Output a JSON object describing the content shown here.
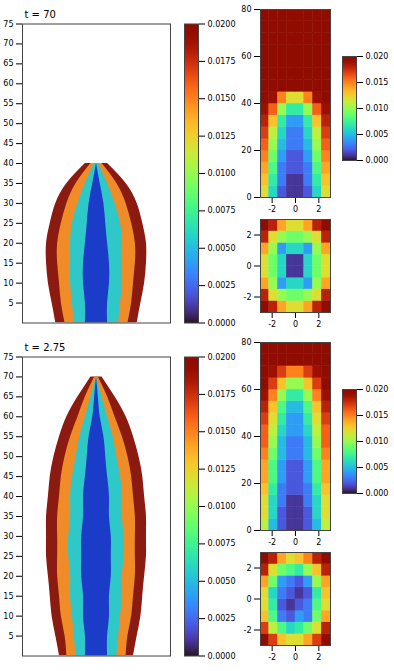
{
  "chart_data": [
    {
      "type": "area",
      "title": "t = 70",
      "xlim": [
        -4,
        4
      ],
      "ylim": [
        0,
        75
      ],
      "yticks": [
        5,
        10,
        15,
        20,
        25,
        30,
        35,
        40,
        45,
        50,
        55,
        60,
        65,
        70,
        75
      ],
      "tick_labels": "y",
      "z": [
        0,
        5,
        10,
        15,
        20,
        25,
        30,
        35,
        40
      ],
      "layers": [
        {
          "color": "#8b1a10",
          "halfwidth": [
            2.2,
            2.4,
            2.6,
            2.7,
            2.7,
            2.5,
            2.2,
            1.6,
            0.6
          ]
        },
        {
          "color": "#f08c28",
          "halfwidth": [
            1.7,
            1.9,
            2.0,
            2.1,
            2.1,
            1.9,
            1.6,
            1.1,
            0.3
          ]
        },
        {
          "color": "#2fc8c8",
          "halfwidth": [
            1.2,
            1.3,
            1.4,
            1.4,
            1.4,
            1.3,
            1.0,
            0.6,
            0.1
          ]
        },
        {
          "color": "#1a3cc8",
          "halfwidth": [
            0.6,
            0.6,
            0.7,
            0.7,
            0.6,
            0.5,
            0.4,
            0.2,
            0.0
          ]
        }
      ],
      "colorbar": {
        "range": [
          0,
          0.02
        ],
        "ticks": [
          {
            "value": 0,
            "label": "0.0000"
          },
          {
            "value": 0.0025,
            "label": "0.0025"
          },
          {
            "value": 0.005,
            "label": "0.0050"
          },
          {
            "value": 0.0075,
            "label": "0.0075"
          },
          {
            "value": 0.01,
            "label": "0.0100"
          },
          {
            "value": 0.0125,
            "label": "0.0125"
          },
          {
            "value": 0.015,
            "label": "0.0150"
          },
          {
            "value": 0.0175,
            "label": "0.0175"
          },
          {
            "value": 0.02,
            "label": "0.0200"
          }
        ]
      }
    },
    {
      "type": "heatmap",
      "xlim": [
        -3,
        3
      ],
      "xticks": [
        -2,
        0,
        2
      ],
      "ylim": [
        0,
        80
      ],
      "yticks": [
        0,
        20,
        40,
        60,
        80
      ],
      "cells": [
        [
          0.012,
          0.006,
          0.002,
          0.001,
          0.001,
          0.002,
          0.006,
          0.012
        ],
        [
          0.013,
          0.007,
          0.003,
          0.001,
          0.001,
          0.003,
          0.007,
          0.013
        ],
        [
          0.014,
          0.008,
          0.003,
          0.002,
          0.002,
          0.003,
          0.008,
          0.014
        ],
        [
          0.015,
          0.009,
          0.004,
          0.002,
          0.002,
          0.004,
          0.009,
          0.015
        ],
        [
          0.016,
          0.01,
          0.005,
          0.003,
          0.003,
          0.005,
          0.01,
          0.016
        ],
        [
          0.017,
          0.011,
          0.006,
          0.003,
          0.003,
          0.006,
          0.011,
          0.017
        ],
        [
          0.018,
          0.013,
          0.007,
          0.004,
          0.004,
          0.007,
          0.013,
          0.018
        ],
        [
          0.019,
          0.016,
          0.01,
          0.007,
          0.007,
          0.01,
          0.016,
          0.019
        ],
        [
          0.02,
          0.019,
          0.015,
          0.012,
          0.012,
          0.015,
          0.019,
          0.02
        ],
        [
          0.02,
          0.02,
          0.02,
          0.02,
          0.02,
          0.02,
          0.02,
          0.02
        ],
        [
          0.02,
          0.02,
          0.02,
          0.02,
          0.02,
          0.02,
          0.02,
          0.02
        ],
        [
          0.02,
          0.02,
          0.02,
          0.02,
          0.02,
          0.02,
          0.02,
          0.02
        ],
        [
          0.02,
          0.02,
          0.02,
          0.02,
          0.02,
          0.02,
          0.02,
          0.02
        ],
        [
          0.02,
          0.02,
          0.02,
          0.02,
          0.02,
          0.02,
          0.02,
          0.02
        ],
        [
          0.02,
          0.02,
          0.02,
          0.02,
          0.02,
          0.02,
          0.02,
          0.02
        ],
        [
          0.02,
          0.02,
          0.02,
          0.02,
          0.02,
          0.02,
          0.02,
          0.02
        ]
      ],
      "colorbar": {
        "range": [
          0,
          0.02
        ],
        "ticks": [
          {
            "value": 0,
            "label": "0.000"
          },
          {
            "value": 0.005,
            "label": "0.005"
          },
          {
            "value": 0.01,
            "label": "0.010"
          },
          {
            "value": 0.015,
            "label": "0.015"
          },
          {
            "value": 0.02,
            "label": "0.020"
          }
        ]
      }
    },
    {
      "type": "heatmap",
      "xlim": [
        -3,
        3
      ],
      "xticks": [
        -2,
        0,
        2
      ],
      "ylim": [
        -3,
        3
      ],
      "yticks": [
        -2,
        0,
        2
      ],
      "cells": [
        [
          0.02,
          0.018,
          0.014,
          0.012,
          0.012,
          0.014,
          0.018,
          0.02
        ],
        [
          0.018,
          0.012,
          0.01,
          0.009,
          0.009,
          0.01,
          0.012,
          0.018
        ],
        [
          0.014,
          0.01,
          0.004,
          0.006,
          0.006,
          0.004,
          0.01,
          0.014
        ],
        [
          0.012,
          0.009,
          0.006,
          0.001,
          0.001,
          0.006,
          0.009,
          0.012
        ],
        [
          0.012,
          0.009,
          0.006,
          0.001,
          0.001,
          0.006,
          0.009,
          0.012
        ],
        [
          0.014,
          0.01,
          0.004,
          0.006,
          0.006,
          0.004,
          0.01,
          0.014
        ],
        [
          0.018,
          0.012,
          0.01,
          0.009,
          0.009,
          0.01,
          0.012,
          0.018
        ],
        [
          0.02,
          0.018,
          0.014,
          0.012,
          0.012,
          0.014,
          0.018,
          0.02
        ]
      ]
    },
    {
      "type": "area",
      "title": "t = 2.75",
      "xlim": [
        -4,
        4
      ],
      "ylim": [
        0,
        75
      ],
      "yticks": [
        5,
        10,
        15,
        20,
        25,
        30,
        35,
        40,
        45,
        50,
        55,
        60,
        65,
        70,
        75
      ],
      "tick_labels": "y",
      "z": [
        0,
        5,
        10,
        15,
        20,
        25,
        30,
        35,
        40,
        45,
        50,
        55,
        60,
        65,
        70
      ],
      "layers": [
        {
          "color": "#8b1a10",
          "halfwidth": [
            2.0,
            2.2,
            2.4,
            2.5,
            2.6,
            2.7,
            2.7,
            2.7,
            2.6,
            2.5,
            2.3,
            2.0,
            1.6,
            1.0,
            0.3
          ]
        },
        {
          "color": "#f08c28",
          "halfwidth": [
            1.6,
            1.7,
            1.9,
            2.0,
            2.1,
            2.1,
            2.1,
            2.1,
            2.0,
            1.9,
            1.7,
            1.4,
            1.0,
            0.6,
            0.1
          ]
        },
        {
          "color": "#2fc8c8",
          "halfwidth": [
            1.1,
            1.2,
            1.3,
            1.4,
            1.4,
            1.5,
            1.5,
            1.4,
            1.4,
            1.3,
            1.1,
            0.9,
            0.6,
            0.3,
            0.0
          ]
        },
        {
          "color": "#1a3cc8",
          "halfwidth": [
            0.6,
            0.6,
            0.7,
            0.7,
            0.8,
            0.8,
            0.8,
            0.7,
            0.7,
            0.6,
            0.5,
            0.4,
            0.2,
            0.1,
            0.0
          ]
        }
      ],
      "colorbar": {
        "range": [
          0,
          0.02
        ],
        "ticks": [
          {
            "value": 0,
            "label": "0.0000"
          },
          {
            "value": 0.0025,
            "label": "0.0025"
          },
          {
            "value": 0.005,
            "label": "0.0050"
          },
          {
            "value": 0.0075,
            "label": "0.0075"
          },
          {
            "value": 0.01,
            "label": "0.0100"
          },
          {
            "value": 0.0125,
            "label": "0.0125"
          },
          {
            "value": 0.015,
            "label": "0.0150"
          },
          {
            "value": 0.0175,
            "label": "0.0175"
          },
          {
            "value": 0.02,
            "label": "0.0200"
          }
        ]
      }
    },
    {
      "type": "heatmap",
      "xlim": [
        -3,
        3
      ],
      "xticks": [
        -2,
        0,
        2
      ],
      "ylim": [
        0,
        80
      ],
      "yticks": [
        0,
        20,
        40,
        60,
        80
      ],
      "cells": [
        [
          0.011,
          0.005,
          0.002,
          0.001,
          0.001,
          0.002,
          0.005,
          0.011
        ],
        [
          0.012,
          0.006,
          0.002,
          0.001,
          0.001,
          0.002,
          0.006,
          0.012
        ],
        [
          0.012,
          0.006,
          0.003,
          0.001,
          0.001,
          0.003,
          0.006,
          0.012
        ],
        [
          0.013,
          0.007,
          0.003,
          0.002,
          0.002,
          0.003,
          0.007,
          0.013
        ],
        [
          0.014,
          0.008,
          0.004,
          0.002,
          0.002,
          0.004,
          0.008,
          0.014
        ],
        [
          0.014,
          0.008,
          0.004,
          0.002,
          0.002,
          0.004,
          0.008,
          0.014
        ],
        [
          0.015,
          0.009,
          0.005,
          0.003,
          0.003,
          0.005,
          0.009,
          0.015
        ],
        [
          0.016,
          0.01,
          0.005,
          0.003,
          0.003,
          0.005,
          0.01,
          0.016
        ],
        [
          0.016,
          0.011,
          0.006,
          0.004,
          0.004,
          0.006,
          0.011,
          0.016
        ],
        [
          0.017,
          0.012,
          0.007,
          0.004,
          0.004,
          0.007,
          0.012,
          0.017
        ],
        [
          0.018,
          0.013,
          0.008,
          0.005,
          0.005,
          0.008,
          0.013,
          0.018
        ],
        [
          0.019,
          0.015,
          0.01,
          0.007,
          0.007,
          0.01,
          0.015,
          0.019
        ],
        [
          0.02,
          0.017,
          0.013,
          0.01,
          0.01,
          0.013,
          0.017,
          0.02
        ],
        [
          0.02,
          0.019,
          0.017,
          0.015,
          0.015,
          0.017,
          0.019,
          0.02
        ],
        [
          0.02,
          0.02,
          0.02,
          0.02,
          0.02,
          0.02,
          0.02,
          0.02
        ],
        [
          0.02,
          0.02,
          0.02,
          0.02,
          0.02,
          0.02,
          0.02,
          0.02
        ]
      ],
      "colorbar": {
        "range": [
          0,
          0.02
        ],
        "ticks": [
          {
            "value": 0,
            "label": "0.000"
          },
          {
            "value": 0.005,
            "label": "0.005"
          },
          {
            "value": 0.01,
            "label": "0.010"
          },
          {
            "value": 0.015,
            "label": "0.015"
          },
          {
            "value": 0.02,
            "label": "0.020"
          }
        ]
      }
    },
    {
      "type": "heatmap",
      "xlim": [
        -3,
        3
      ],
      "xticks": [
        -2,
        0,
        2
      ],
      "ylim": [
        -3,
        3
      ],
      "yticks": [
        -2,
        0,
        2
      ],
      "cells": [
        [
          0.02,
          0.017,
          0.013,
          0.012,
          0.012,
          0.014,
          0.017,
          0.02
        ],
        [
          0.017,
          0.011,
          0.008,
          0.006,
          0.007,
          0.009,
          0.012,
          0.018
        ],
        [
          0.013,
          0.008,
          0.003,
          0.002,
          0.004,
          0.003,
          0.009,
          0.014
        ],
        [
          0.012,
          0.007,
          0.002,
          0.001,
          0.002,
          0.003,
          0.008,
          0.012
        ],
        [
          0.012,
          0.006,
          0.003,
          0.002,
          0.001,
          0.002,
          0.007,
          0.013
        ],
        [
          0.014,
          0.009,
          0.004,
          0.003,
          0.002,
          0.004,
          0.01,
          0.014
        ],
        [
          0.018,
          0.012,
          0.009,
          0.008,
          0.007,
          0.01,
          0.013,
          0.018
        ],
        [
          0.02,
          0.018,
          0.014,
          0.012,
          0.013,
          0.015,
          0.018,
          0.02
        ]
      ]
    }
  ]
}
